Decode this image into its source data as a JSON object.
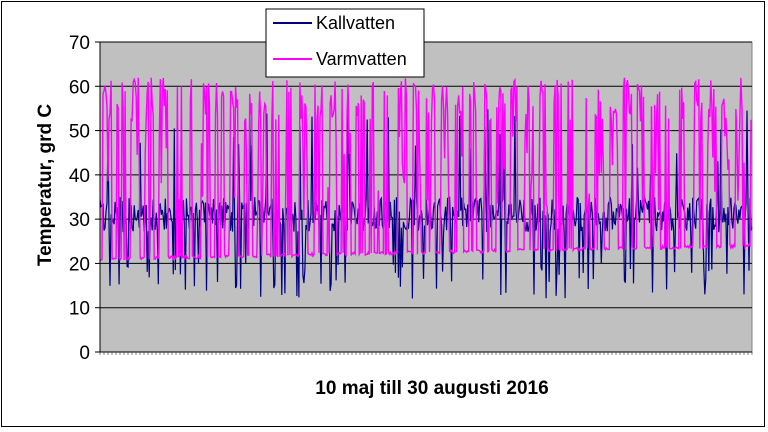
{
  "chart_data": {
    "type": "line",
    "title": "",
    "xlabel": "10 maj till 30 augusti 2016",
    "ylabel": "Temperatur, grd C",
    "ylim": [
      0,
      70
    ],
    "yticks": [
      "0",
      "10",
      "20",
      "30",
      "40",
      "50",
      "60",
      "70"
    ],
    "x_period": {
      "start": "2016-05-10",
      "end": "2016-08-30"
    },
    "grid": true,
    "legend_position": "top-center",
    "colors": {
      "plot_bg": "#c0c0c0",
      "kallvatten": "#000080",
      "varmvatten": "#ff00ff"
    },
    "series": [
      {
        "name": "Kallvatten",
        "color": "#000080",
        "typical_range": [
          27,
          35
        ],
        "dips_to": [
          12,
          20
        ],
        "spikes_to": [
          40,
          55
        ]
      },
      {
        "name": "Varmvatten",
        "color": "#ff00ff",
        "baseline_start": 21,
        "baseline_end": 24,
        "daily_peak_range": [
          52,
          62
        ]
      }
    ]
  }
}
